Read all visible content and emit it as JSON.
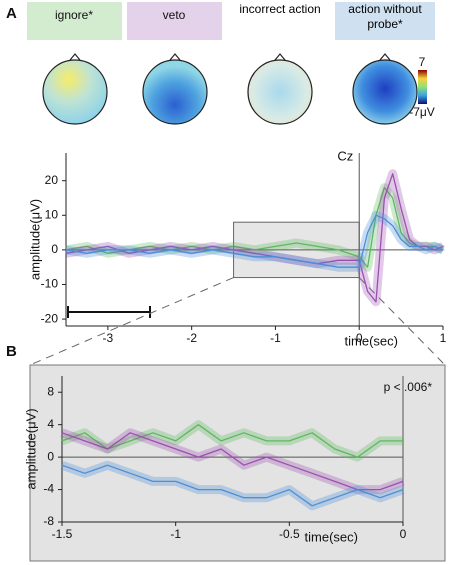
{
  "figure": {
    "panels": [
      "A",
      "B"
    ],
    "topomaps": [
      "ignore*",
      "veto",
      "incorrect action",
      "action without probe*"
    ],
    "colorbar": {
      "max_label": "7",
      "min_label": "-7μV"
    }
  },
  "chart_data": [
    {
      "type": "line",
      "title": "Cz",
      "xlabel": "time(sec)",
      "ylabel": "amplitude(μV)",
      "x": [
        -3.5,
        -3.25,
        -3,
        -2.75,
        -2.5,
        -2.25,
        -2,
        -1.75,
        -1.5,
        -1.25,
        -1,
        -0.75,
        -0.5,
        -0.25,
        0,
        0.1,
        0.2,
        0.3,
        0.4,
        0.5,
        0.6,
        0.7,
        0.8,
        0.9,
        1
      ],
      "series": [
        {
          "color": "#5cb85c",
          "values": [
            0,
            1,
            -1,
            0,
            1,
            0,
            1,
            0,
            1,
            0,
            1,
            2,
            1,
            0,
            -2,
            -5,
            10,
            18,
            15,
            5,
            2,
            1,
            1,
            1,
            0
          ]
        },
        {
          "color": "#9b4fb0",
          "values": [
            -1,
            0,
            1,
            -1,
            0,
            1,
            0,
            1,
            0,
            -1,
            -2,
            -3,
            -4,
            -3,
            -3,
            -12,
            -15,
            15,
            22,
            12,
            3,
            1,
            1,
            0,
            1
          ]
        },
        {
          "color": "#4a8fd8",
          "values": [
            0,
            -1,
            0,
            0,
            -1,
            0,
            -1,
            0,
            -1,
            -2,
            -2,
            -3,
            -4,
            -5,
            -5,
            5,
            10,
            9,
            7,
            3,
            1,
            1,
            0,
            1,
            0
          ]
        }
      ],
      "xlim": [
        -3.5,
        1
      ],
      "ylim": [
        -22,
        28
      ],
      "xticks": [
        -3,
        -2,
        -1,
        0,
        1
      ],
      "yticks": [
        -20,
        -10,
        0,
        10,
        20
      ]
    },
    {
      "type": "line",
      "annotation": "p < .006*",
      "xlabel": "time(sec)",
      "ylabel": "amplitude(μV)",
      "x": [
        -1.5,
        -1.4,
        -1.3,
        -1.2,
        -1.1,
        -1,
        -0.9,
        -0.8,
        -0.7,
        -0.6,
        -0.5,
        -0.4,
        -0.3,
        -0.2,
        -0.1,
        0
      ],
      "series": [
        {
          "color": "#5cb85c",
          "values": [
            2,
            3,
            1,
            2,
            3,
            2,
            4,
            2,
            3,
            2,
            2,
            3,
            1,
            0,
            2,
            2
          ]
        },
        {
          "color": "#9b4fb0",
          "values": [
            3,
            2,
            1,
            3,
            2,
            1,
            0,
            1,
            -1,
            0,
            -1,
            -2,
            -3,
            -4,
            -4,
            -3
          ]
        },
        {
          "color": "#4a8fd8",
          "values": [
            -1,
            -2,
            -1,
            -2,
            -3,
            -3,
            -4,
            -4,
            -5,
            -5,
            -4,
            -6,
            -5,
            -4,
            -5,
            -4
          ]
        }
      ],
      "xlim": [
        -1.5,
        0
      ],
      "ylim": [
        -8,
        10
      ],
      "xticks": [
        -1.5,
        -1,
        -0.5,
        0
      ],
      "yticks": [
        -8,
        -4,
        0,
        4,
        8
      ]
    }
  ]
}
